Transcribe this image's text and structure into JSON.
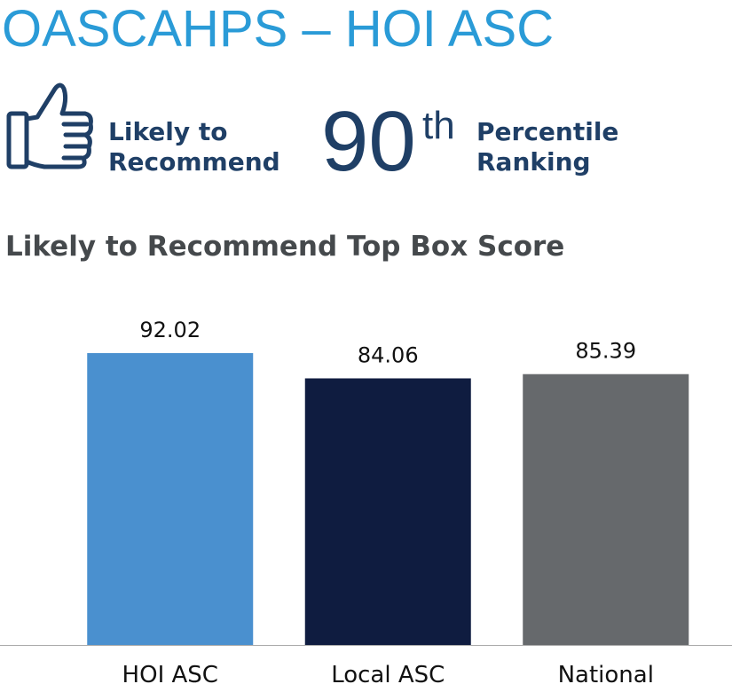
{
  "header": {
    "title": "OASCAHPS – HOI ASC"
  },
  "highlights": {
    "recommend_lines": [
      "Likely to",
      "Recommend"
    ],
    "rank": "90",
    "rank_suffix": "th",
    "rank_lines": [
      "Percentile",
      "Ranking"
    ]
  },
  "chart_data": {
    "type": "bar",
    "title": "Likely to Recommend Top Box Score",
    "categories": [
      "HOI ASC",
      "Local ASC",
      "National"
    ],
    "values": [
      92.02,
      84.06,
      85.39
    ],
    "colors": [
      "#4a90cf",
      "#0f1c40",
      "#66696c"
    ],
    "ylim": [
      0,
      100
    ]
  }
}
